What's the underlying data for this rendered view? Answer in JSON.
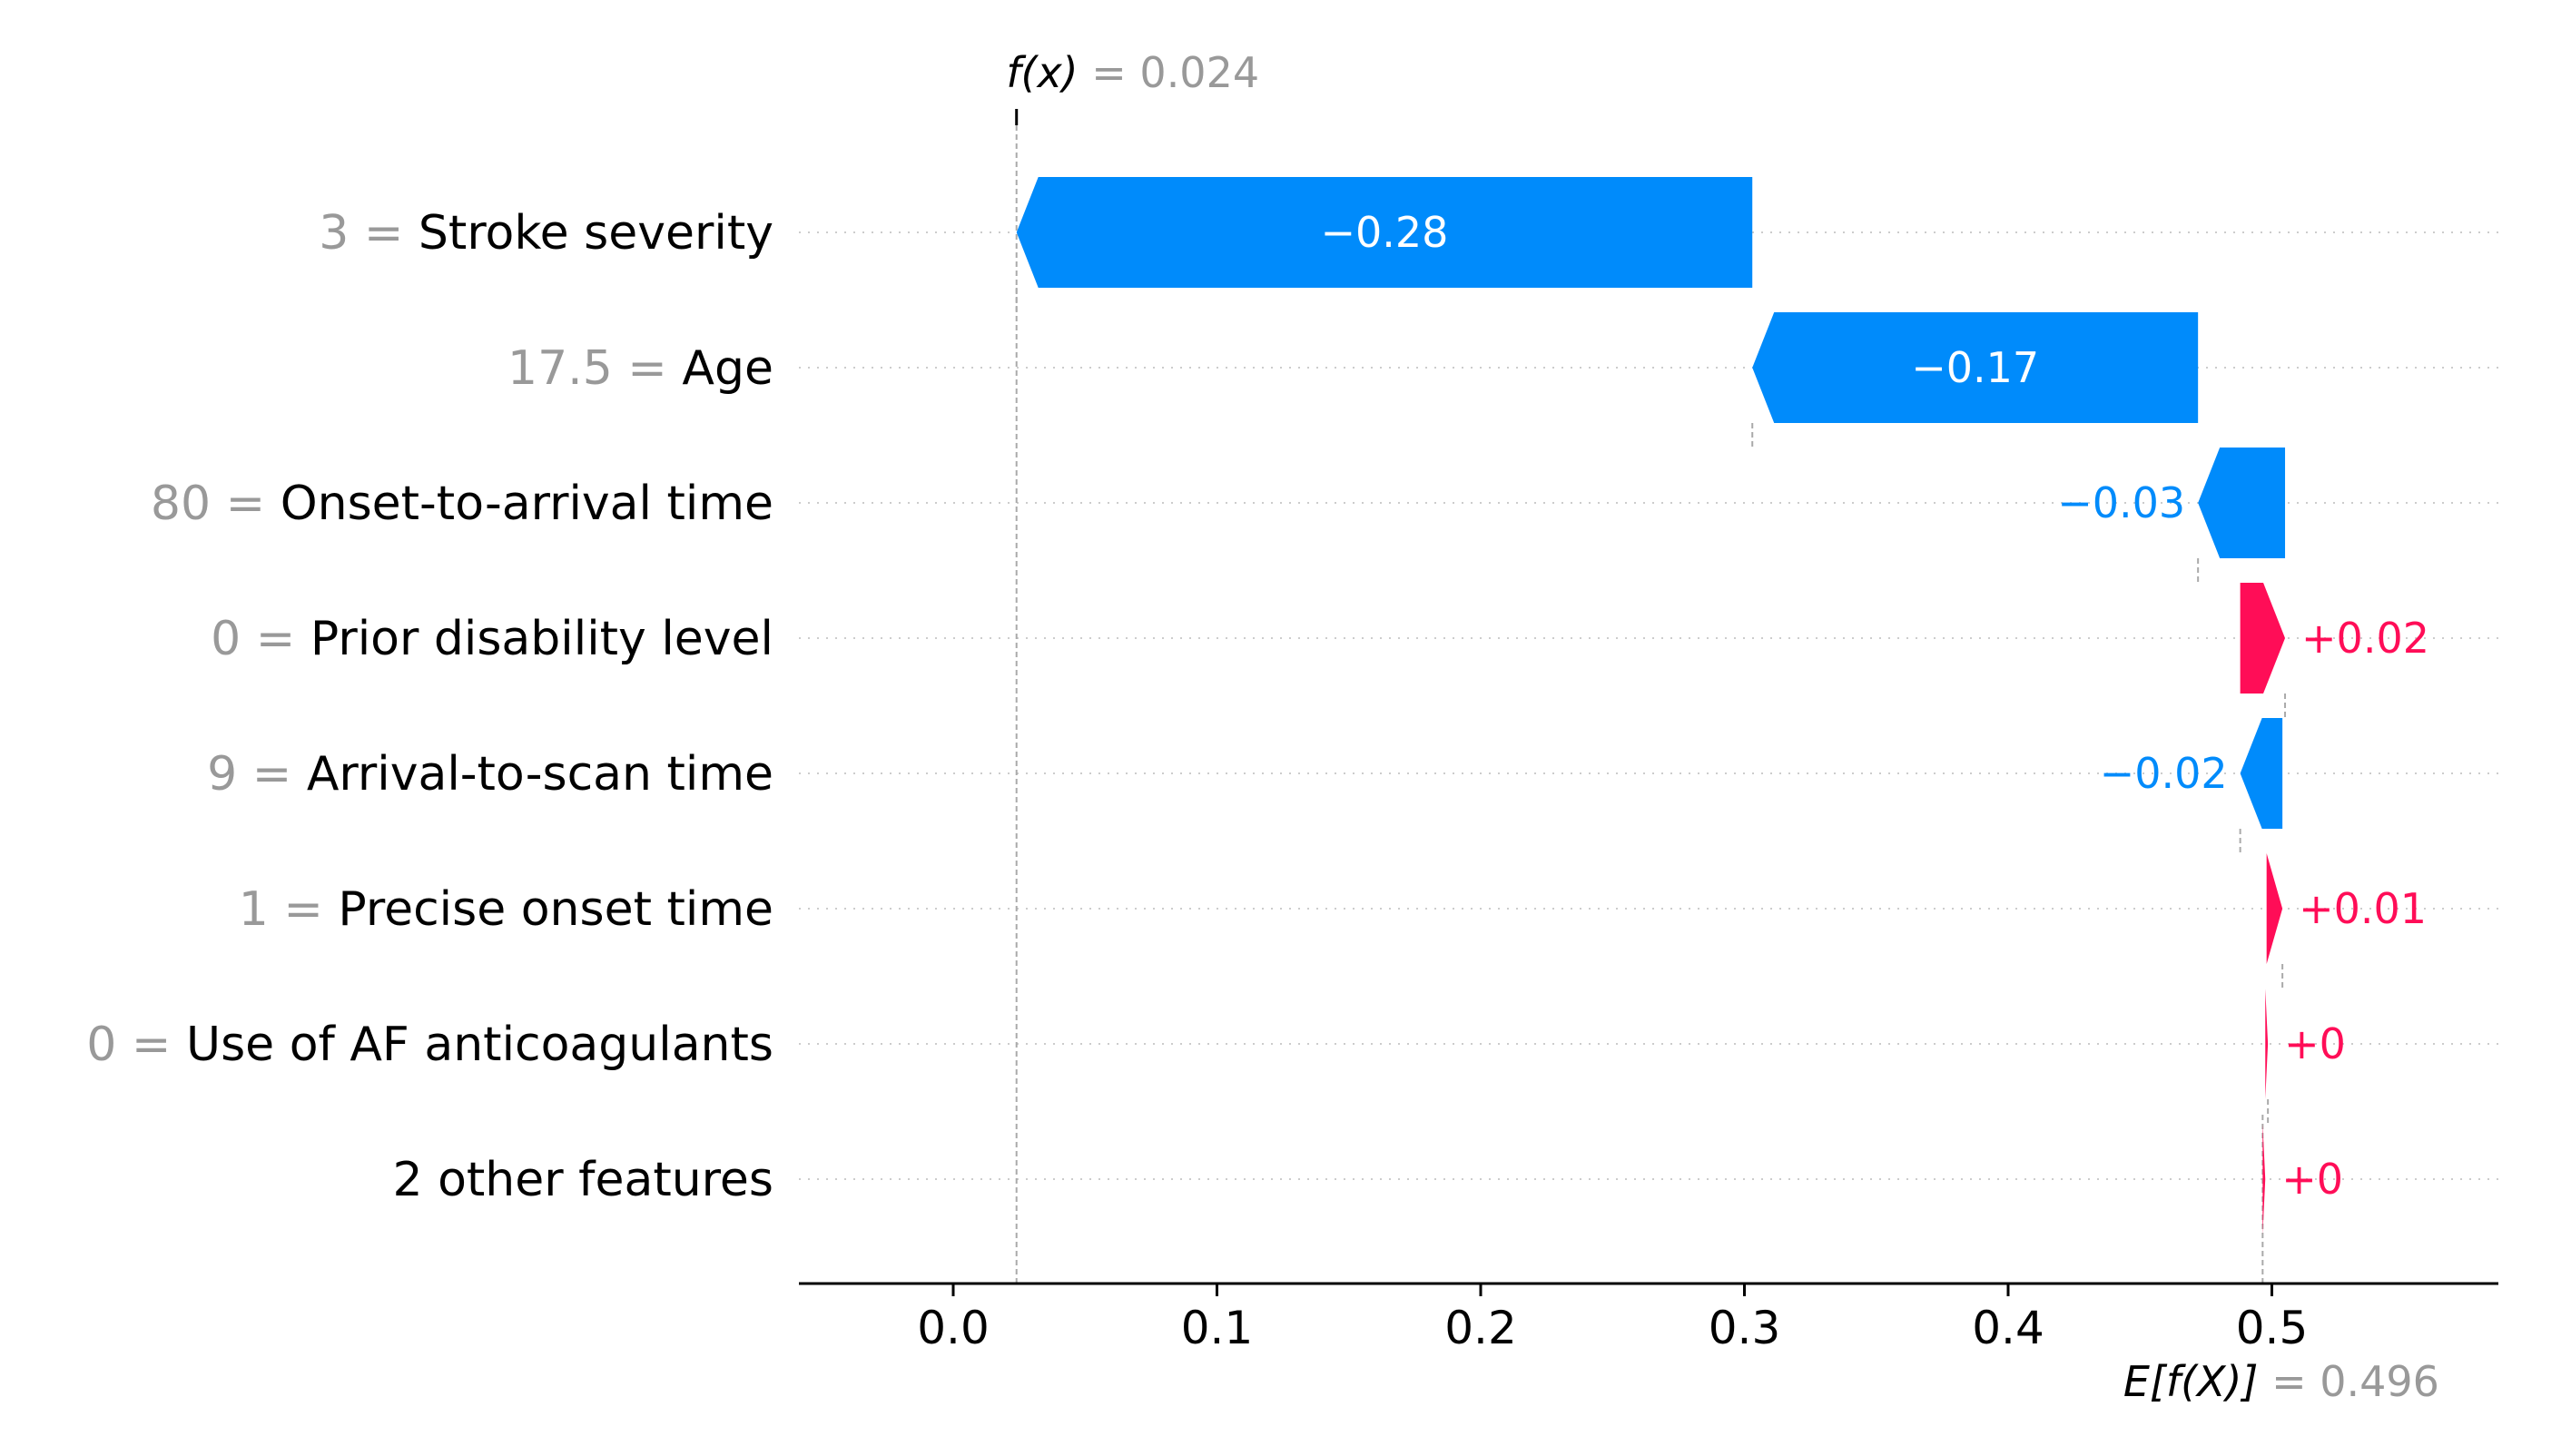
{
  "chart_data": {
    "type": "waterfall",
    "subtype": "shap-waterfall",
    "colors": {
      "positive": "#ff0d57",
      "negative": "#008bfb",
      "text_gray": "#999999"
    },
    "fx": {
      "label": "f(x)",
      "value": "0.024"
    },
    "efx": {
      "label": "E[f(X)]",
      "value": "0.496"
    },
    "base_value": 0.496,
    "output_value": 0.024,
    "xlim": [
      -0.058,
      0.585
    ],
    "xticks": [
      {
        "value": 0.0,
        "label": "0.0"
      },
      {
        "value": 0.1,
        "label": "0.1"
      },
      {
        "value": 0.2,
        "label": "0.2"
      },
      {
        "value": 0.3,
        "label": "0.3"
      },
      {
        "value": 0.4,
        "label": "0.4"
      },
      {
        "value": 0.5,
        "label": "0.5"
      }
    ],
    "features": [
      {
        "value_text": "3",
        "name": "Stroke severity",
        "start": 0.303,
        "end": 0.024,
        "label": "−0.28",
        "label_inside": true
      },
      {
        "value_text": "17.5",
        "name": "Age",
        "start": 0.472,
        "end": 0.303,
        "label": "−0.17",
        "label_inside": true
      },
      {
        "value_text": "80",
        "name": "Onset-to-arrival time",
        "start": 0.505,
        "end": 0.472,
        "label": "−0.03",
        "label_inside": false
      },
      {
        "value_text": "0",
        "name": "Prior disability level",
        "start": 0.488,
        "end": 0.505,
        "label": "+0.02",
        "label_inside": false
      },
      {
        "value_text": "9",
        "name": "Arrival-to-scan time",
        "start": 0.504,
        "end": 0.488,
        "label": "−0.02",
        "label_inside": false
      },
      {
        "value_text": "1",
        "name": "Precise onset time",
        "start": 0.498,
        "end": 0.504,
        "label": "+0.01",
        "label_inside": false
      },
      {
        "value_text": "0",
        "name": "Use of AF anticoagulants",
        "start": 0.4975,
        "end": 0.4985,
        "label": "+0",
        "label_inside": false
      },
      {
        "value_text": "",
        "name": "2 other features",
        "start": 0.4965,
        "end": 0.4975,
        "label": "+0",
        "label_inside": false
      }
    ]
  }
}
